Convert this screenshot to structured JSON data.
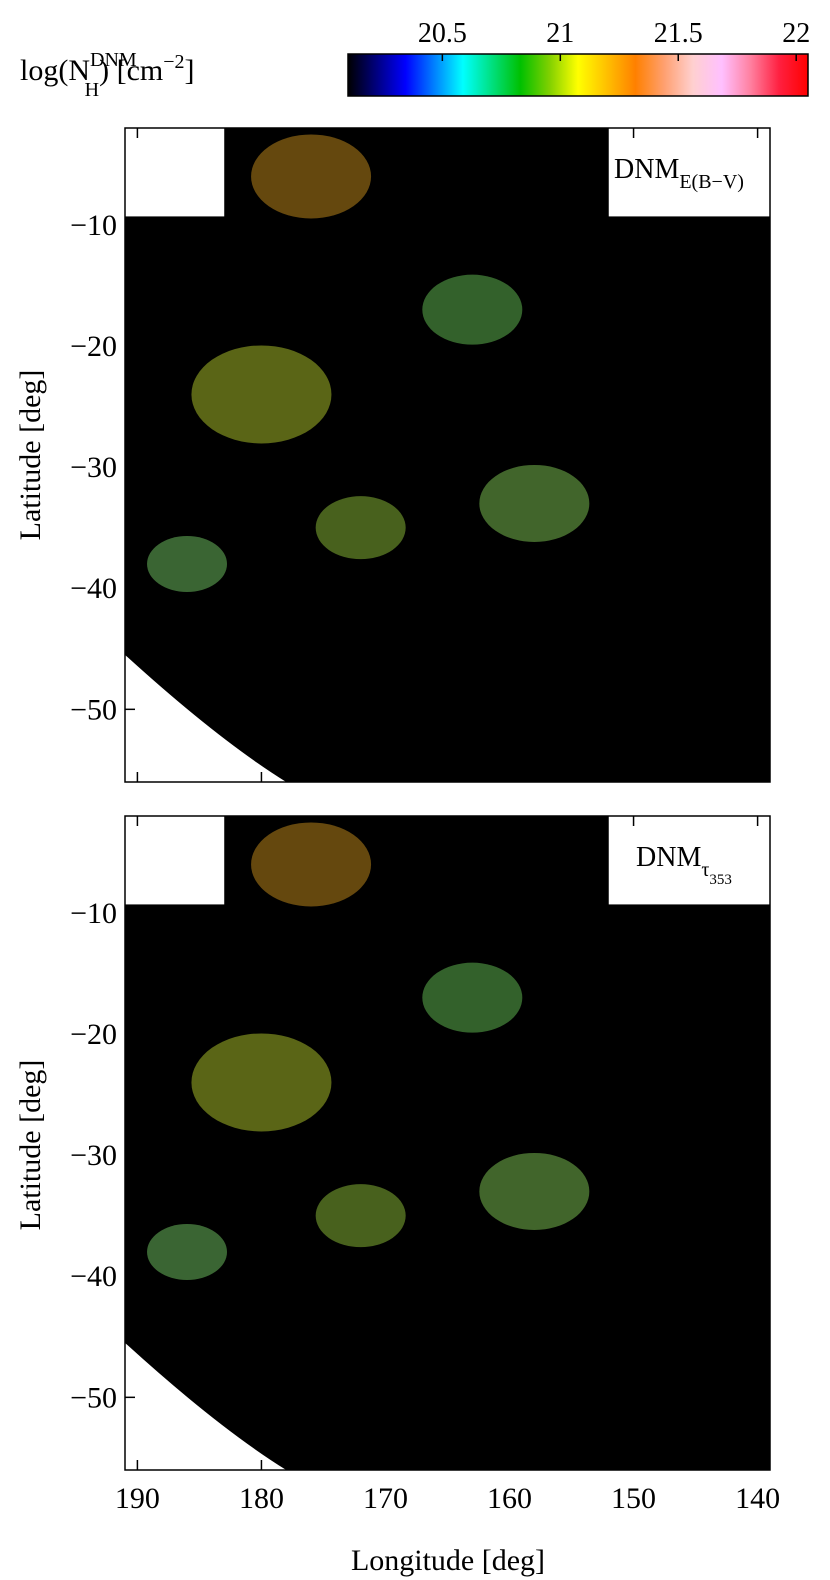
{
  "colorbar": {
    "label_main": "log(N",
    "label_sub": "H",
    "label_sup": "DNM",
    "label_unit": ") [cm",
    "label_unit_exp": "−2",
    "label_close": "]",
    "ticks": [
      "20.5",
      "21",
      "21.5",
      "22"
    ],
    "tick_values": [
      20.5,
      21.0,
      21.5,
      22.0
    ],
    "range": [
      20.1,
      22.05
    ],
    "colors": [
      "#000000",
      "#000080",
      "#0000ff",
      "#0080ff",
      "#00ffff",
      "#00e080",
      "#00c000",
      "#80d000",
      "#ffff00",
      "#ffc000",
      "#ff8000",
      "#ffa070",
      "#ffd0d0",
      "#ffc0ff",
      "#ff80a0",
      "#ff2040",
      "#ff0000"
    ]
  },
  "panels": [
    {
      "id": "top",
      "title_main": "DNM",
      "title_sub": "E(B−V)"
    },
    {
      "id": "bottom",
      "title_main": "DNM",
      "title_sub": "τ",
      "title_sub2": "353"
    }
  ],
  "chart_data": {
    "type": "heatmap",
    "xlabel": "Longitude [deg]",
    "ylabel": "Latitude [deg]",
    "xlim": [
      191,
      139
    ],
    "ylim": [
      -56,
      -2
    ],
    "xticks": [
      "190",
      "180",
      "170",
      "160",
      "150",
      "140"
    ],
    "xtick_values": [
      190,
      180,
      170,
      160,
      150,
      140
    ],
    "yticks": [
      "−10",
      "−20",
      "−30",
      "−40",
      "−50"
    ],
    "ytick_values": [
      -10,
      -20,
      -30,
      -40,
      -50
    ],
    "colorscale_label": "log(N_H^DNM) [cm^-2]",
    "colorscale_range": [
      20.1,
      22.05
    ],
    "masked_region_color": "#ffffff",
    "panels": [
      "DNM_E(B−V)",
      "DNM_τ353"
    ]
  }
}
